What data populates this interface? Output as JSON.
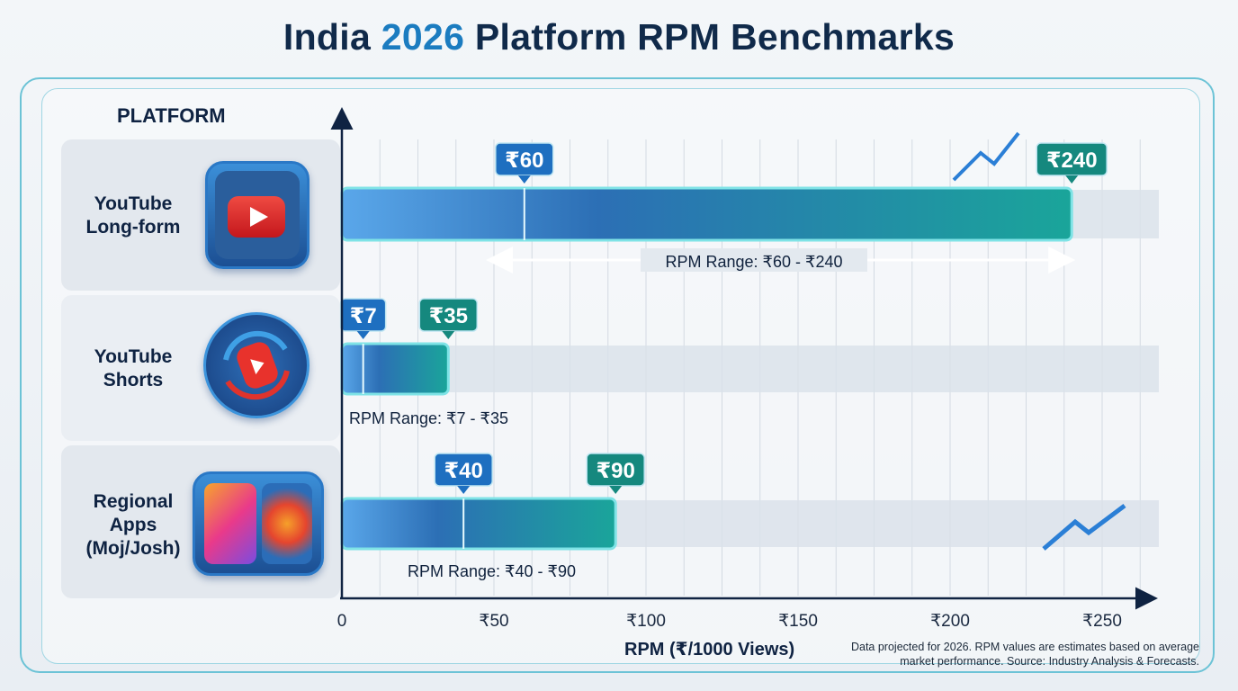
{
  "title": {
    "prefix": "India ",
    "accent": "2026",
    "suffix": " Platform RPM Benchmarks"
  },
  "platform_header": "PLATFORM",
  "rows": [
    {
      "label_line1": "YouTube",
      "label_line2": "Long-form",
      "label_line3": "",
      "icon": "youtube-play-icon"
    },
    {
      "label_line1": "YouTube",
      "label_line2": "Shorts",
      "label_line3": "",
      "icon": "youtube-shorts-icon"
    },
    {
      "label_line1": "Regional",
      "label_line2": "Apps",
      "label_line3": "(Moj/Josh)",
      "icon": "moj-josh-app-icon"
    }
  ],
  "footnote_line1": "Data projected for 2026. RPM values are estimates based on average",
  "footnote_line2": "market performance. Source: Industry Analysis & Forecasts.",
  "colors": {
    "min_badge": "#1e6fc0",
    "max_badge": "#15887e",
    "bar_start": "#5aa7ea",
    "bar_end": "#1aa59a",
    "frame": "#6cc3d6"
  },
  "chart_data": {
    "type": "bar",
    "orientation": "horizontal-range",
    "categories": [
      "YouTube Long-form",
      "YouTube Shorts",
      "Regional Apps (Moj/Josh)"
    ],
    "series": [
      {
        "min": 60,
        "max": 240,
        "min_label": "₹60",
        "max_label": "₹240",
        "range_label": "RPM Range: ₹60 - ₹240"
      },
      {
        "min": 7,
        "max": 35,
        "min_label": "₹7",
        "max_label": "₹35",
        "range_label": "RPM Range: ₹7 - ₹35"
      },
      {
        "min": 40,
        "max": 90,
        "min_label": "₹40",
        "max_label": "₹90",
        "range_label": "RPM Range: ₹40 - ₹90"
      }
    ],
    "xlabel": "RPM (₹/1000 Views)",
    "ylabel": "PLATFORM",
    "xlim": [
      0,
      250
    ],
    "xticks": [
      0,
      50,
      100,
      150,
      200,
      250
    ],
    "xtick_labels": [
      "0",
      "₹50",
      "₹100",
      "₹150",
      "₹200",
      "₹250"
    ],
    "grid": true
  }
}
